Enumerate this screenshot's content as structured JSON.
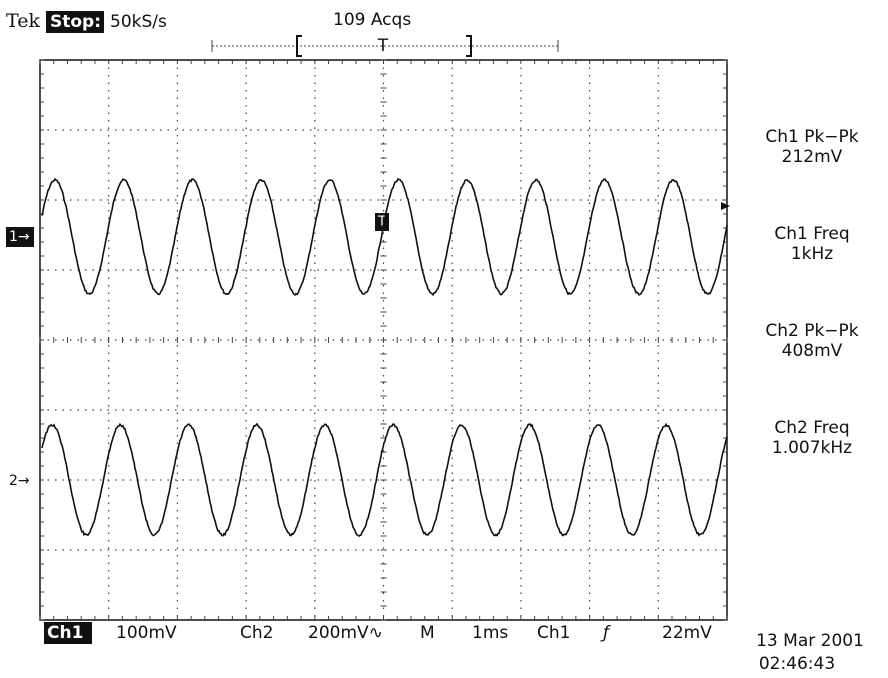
{
  "header": {
    "brand": "Tek",
    "state": "Stop:",
    "rate": "50kS/s",
    "acquisitions": "109 Acqs",
    "trigger_marker": "T"
  },
  "markers": {
    "ch1": "1→",
    "ch2": "2→",
    "trigger": "T"
  },
  "measurements": [
    {
      "label": "Ch1 Pk−Pk",
      "value": "212mV"
    },
    {
      "label": "Ch1 Freq",
      "value": "1kHz"
    },
    {
      "label": "Ch2 Pk−Pk",
      "value": "408mV"
    },
    {
      "label": "Ch2 Freq",
      "value": "1.007kHz"
    }
  ],
  "footer": {
    "ch1": "Ch1",
    "ch1_scale": "100mV",
    "ch2": "Ch2",
    "ch2_scale": "200mV∿",
    "mode": "M",
    "timebase": "1ms",
    "trigger_source": "Ch1",
    "slope": "ƒ",
    "trigger_level": "22mV"
  },
  "timestamp": {
    "date": "13 Mar 2001",
    "time": "02:46:43"
  }
}
